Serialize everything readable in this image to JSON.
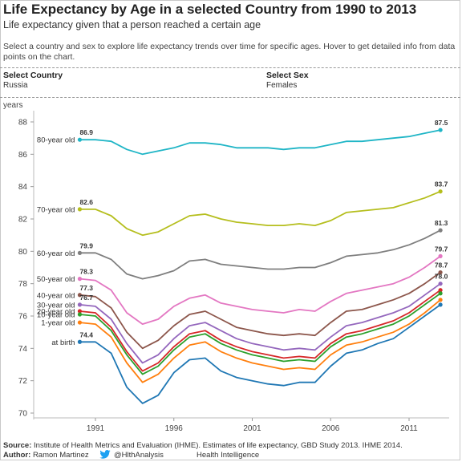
{
  "header": {
    "title": "Life Expectancy by Age in a selected Country from 1990 to 2013",
    "subtitle": "Life expectancy given that a person reached a certain age",
    "description": "Select a country and sex to explore life expectancy trends over time for specific ages. Hover to get detailed info from data points on the chart."
  },
  "filters": {
    "country_label": "Select Country",
    "country_value": "Russia",
    "sex_label": "Select Sex",
    "sex_value": "Females"
  },
  "footer": {
    "source_label": "Source:",
    "source_text": "Institute of Health Metrics and Evaluation (IHME). Estimates of life expectancy, GBD Study 2013. IHME 2014.",
    "author_label": "Author:",
    "author_name": "Ramon Martinez",
    "twitter_handle": "@HlthAnalysis",
    "organization": "Health Intelligence",
    "twitter_icon": "twitter-bird-icon"
  },
  "chart_data": {
    "type": "line",
    "ylabel": "years",
    "ylim": [
      70,
      88.5
    ],
    "yticks": [
      70,
      72,
      74,
      76,
      78,
      80,
      82,
      84,
      86,
      88
    ],
    "xlim": [
      1989,
      2014
    ],
    "xticks": [
      1991,
      1996,
      2001,
      2006,
      2011
    ],
    "grid": false,
    "x": [
      1990,
      1991,
      1992,
      1993,
      1994,
      1995,
      1996,
      1997,
      1998,
      1999,
      2000,
      2001,
      2002,
      2003,
      2004,
      2005,
      2006,
      2007,
      2008,
      2009,
      2010,
      2011,
      2012,
      2013
    ],
    "series": [
      {
        "name": "80-year old",
        "color": "#1fb5c6",
        "start_label": "86.9",
        "end_label": "87.5",
        "values": [
          86.9,
          86.9,
          86.8,
          86.3,
          86.0,
          86.2,
          86.4,
          86.7,
          86.7,
          86.6,
          86.4,
          86.4,
          86.4,
          86.3,
          86.4,
          86.4,
          86.6,
          86.8,
          86.8,
          86.9,
          87.0,
          87.1,
          87.3,
          87.5
        ]
      },
      {
        "name": "70-year old",
        "color": "#b5be1d",
        "start_label": "82.6",
        "end_label": "83.7",
        "values": [
          82.6,
          82.6,
          82.2,
          81.4,
          81.0,
          81.2,
          81.7,
          82.2,
          82.3,
          82.0,
          81.8,
          81.7,
          81.6,
          81.6,
          81.7,
          81.6,
          81.9,
          82.4,
          82.5,
          82.6,
          82.7,
          83.0,
          83.3,
          83.7
        ]
      },
      {
        "name": "60-year old",
        "color": "#7f7f7f",
        "start_label": "79.9",
        "end_label": "81.3",
        "values": [
          79.9,
          79.9,
          79.5,
          78.6,
          78.3,
          78.5,
          78.8,
          79.4,
          79.5,
          79.2,
          79.1,
          79.0,
          78.9,
          78.9,
          79.0,
          79.0,
          79.3,
          79.7,
          79.8,
          79.9,
          80.1,
          80.4,
          80.8,
          81.3
        ]
      },
      {
        "name": "50-year old",
        "color": "#e377c2",
        "start_label": "78.3",
        "end_label": "79.7",
        "values": [
          78.3,
          78.2,
          77.6,
          76.2,
          75.5,
          75.8,
          76.6,
          77.1,
          77.3,
          76.8,
          76.6,
          76.4,
          76.3,
          76.2,
          76.4,
          76.3,
          76.9,
          77.4,
          77.6,
          77.8,
          78.0,
          78.4,
          79.0,
          79.7
        ]
      },
      {
        "name": "40-year old",
        "color": "#8c564b",
        "start_label": "77.3",
        "end_label": "78.7",
        "values": [
          77.3,
          77.2,
          76.5,
          75.0,
          74.0,
          74.5,
          75.4,
          76.1,
          76.3,
          75.8,
          75.3,
          75.1,
          74.9,
          74.8,
          74.9,
          74.8,
          75.6,
          76.3,
          76.4,
          76.7,
          77.0,
          77.4,
          78.0,
          78.7
        ]
      },
      {
        "name": "30-year old",
        "color": "#9467bd",
        "start_label": "76.7",
        "end_label": "78.0",
        "values": [
          76.7,
          76.6,
          75.8,
          74.3,
          73.1,
          73.6,
          74.6,
          75.4,
          75.6,
          75.1,
          74.6,
          74.3,
          74.1,
          73.9,
          74.0,
          73.9,
          74.7,
          75.4,
          75.6,
          75.9,
          76.2,
          76.6,
          77.3,
          78.0
        ]
      },
      {
        "name": "20-year old",
        "color": "#d62728",
        "start_label": "",
        "end_label": "",
        "values": [
          76.3,
          76.2,
          75.3,
          73.8,
          72.6,
          73.1,
          74.1,
          74.9,
          75.1,
          74.5,
          74.1,
          73.8,
          73.6,
          73.4,
          73.5,
          73.4,
          74.3,
          74.9,
          75.1,
          75.4,
          75.7,
          76.2,
          76.9,
          77.6
        ]
      },
      {
        "name": "10-year old",
        "color": "#2ca02c",
        "start_label": "",
        "end_label": "",
        "values": [
          76.1,
          76.0,
          75.1,
          73.6,
          72.4,
          72.9,
          73.9,
          74.7,
          74.9,
          74.3,
          73.9,
          73.6,
          73.4,
          73.2,
          73.3,
          73.2,
          74.1,
          74.7,
          74.9,
          75.2,
          75.5,
          76.0,
          76.7,
          77.4
        ]
      },
      {
        "name": "1-year old",
        "color": "#ff7f0e",
        "start_label": "",
        "end_label": "",
        "values": [
          75.6,
          75.5,
          74.7,
          73.1,
          71.9,
          72.4,
          73.4,
          74.2,
          74.4,
          73.8,
          73.4,
          73.1,
          72.9,
          72.7,
          72.8,
          72.7,
          73.6,
          74.2,
          74.4,
          74.7,
          75.0,
          75.5,
          76.2,
          77.0
        ]
      },
      {
        "name": "at birth",
        "color": "#1f77b4",
        "start_label": "74.4",
        "end_label": "",
        "values": [
          74.4,
          74.4,
          73.7,
          71.6,
          70.6,
          71.1,
          72.5,
          73.3,
          73.4,
          72.6,
          72.2,
          72.0,
          71.8,
          71.7,
          71.9,
          71.9,
          72.9,
          73.7,
          73.9,
          74.3,
          74.6,
          75.3,
          76.0,
          76.7
        ]
      }
    ]
  }
}
